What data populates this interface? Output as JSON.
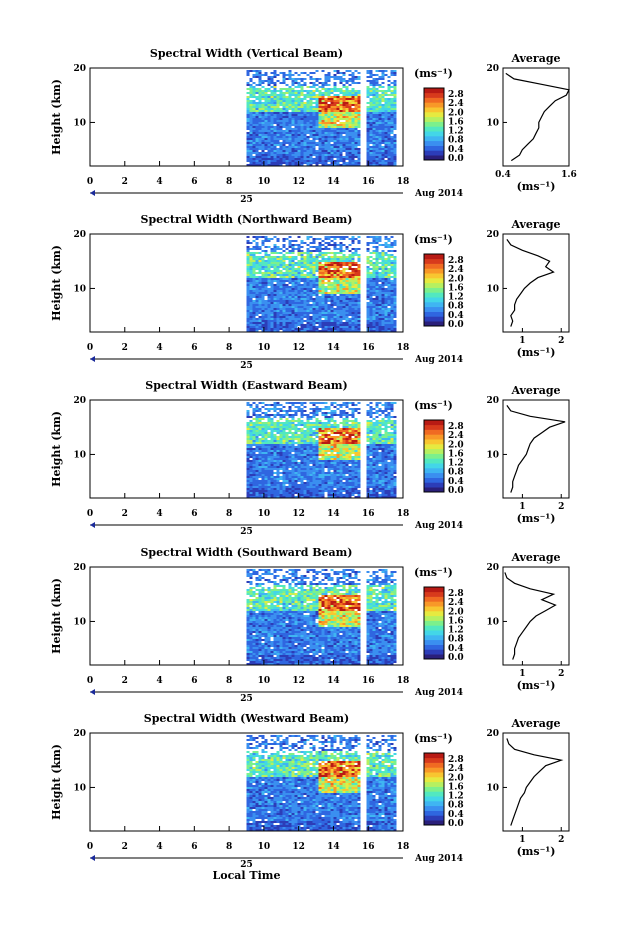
{
  "figure": {
    "xlabel": "Local Time",
    "date_label": "Aug 2014",
    "day_label": "25",
    "colorbar_unit": "(ms⁻¹)",
    "avg_title": "Average",
    "avg_unit": "(ms⁻¹)",
    "colors": {
      "colormap": [
        "#2a1f7a",
        "#2c3db8",
        "#2f66e0",
        "#3a8ff0",
        "#3fb5f2",
        "#43d6e8",
        "#52e8c0",
        "#7cf08c",
        "#b6f060",
        "#e6ea40",
        "#f8c630",
        "#f89828",
        "#f06a22",
        "#d83a1c",
        "#b81a14"
      ]
    }
  },
  "chart_data": [
    {
      "type": "heatmap",
      "title": "Spectral Width (Vertical Beam)",
      "ylabel": "Height (km)",
      "xlim": [
        0,
        18
      ],
      "ylim": [
        2,
        20
      ],
      "xticks": [
        "0",
        "2",
        "4",
        "6",
        "8",
        "10",
        "12",
        "14",
        "16",
        "18"
      ],
      "yticks": [
        "10",
        "20"
      ],
      "colorbar_ticks": [
        "2.8",
        "2.4",
        "2.0",
        "1.6",
        "1.2",
        "0.8",
        "0.4",
        "0.0"
      ],
      "data_start_hour": 9.0,
      "data_end_hour": 17.6,
      "gaps_hours": [
        [
          15.5,
          15.9
        ]
      ],
      "average": {
        "xlim": [
          0.4,
          1.6
        ],
        "xticks": [
          "0.4",
          "1.6"
        ],
        "yticks": [
          "10",
          "20"
        ],
        "height_km": [
          3,
          4,
          5,
          6,
          7,
          8,
          9,
          10,
          11,
          12,
          13,
          14,
          15,
          16,
          17,
          18,
          19
        ],
        "value": [
          0.55,
          0.7,
          0.75,
          0.85,
          0.95,
          1.0,
          1.05,
          1.05,
          1.1,
          1.15,
          1.25,
          1.35,
          1.55,
          1.6,
          1.1,
          0.6,
          0.45
        ]
      }
    },
    {
      "type": "heatmap",
      "title": "Spectral Width (Northward Beam)",
      "ylabel": "Height (km)",
      "xlim": [
        0,
        18
      ],
      "ylim": [
        2,
        20
      ],
      "xticks": [
        "0",
        "2",
        "4",
        "6",
        "8",
        "10",
        "12",
        "14",
        "16",
        "18"
      ],
      "yticks": [
        "10",
        "20"
      ],
      "colorbar_ticks": [
        "2.8",
        "2.4",
        "2.0",
        "1.6",
        "1.2",
        "0.8",
        "0.4",
        "0.0"
      ],
      "data_start_hour": 9.0,
      "data_end_hour": 17.6,
      "gaps_hours": [
        [
          15.5,
          15.9
        ]
      ],
      "average": {
        "xlim": [
          0.5,
          2.2
        ],
        "xticks": [
          "1",
          "2"
        ],
        "yticks": [
          "10",
          "20"
        ],
        "height_km": [
          3,
          4,
          5,
          6,
          7,
          8,
          9,
          10,
          11,
          12,
          13,
          14,
          15,
          16,
          17,
          18,
          19
        ],
        "value": [
          0.7,
          0.75,
          0.7,
          0.8,
          0.8,
          0.85,
          0.95,
          1.05,
          1.2,
          1.4,
          1.8,
          1.6,
          1.7,
          1.4,
          1.0,
          0.7,
          0.6
        ]
      }
    },
    {
      "type": "heatmap",
      "title": "Spectral Width (Eastward Beam)",
      "ylabel": "Height (km)",
      "xlim": [
        0,
        18
      ],
      "ylim": [
        2,
        20
      ],
      "xticks": [
        "0",
        "2",
        "4",
        "6",
        "8",
        "10",
        "12",
        "14",
        "16",
        "18"
      ],
      "yticks": [
        "10",
        "20"
      ],
      "colorbar_ticks": [
        "2.8",
        "2.4",
        "2.0",
        "1.6",
        "1.2",
        "0.8",
        "0.4",
        "0.0"
      ],
      "data_start_hour": 9.0,
      "data_end_hour": 17.6,
      "gaps_hours": [
        [
          15.5,
          15.9
        ]
      ],
      "average": {
        "xlim": [
          0.5,
          2.2
        ],
        "xticks": [
          "1",
          "2"
        ],
        "yticks": [
          "10",
          "20"
        ],
        "height_km": [
          3,
          4,
          5,
          6,
          7,
          8,
          9,
          10,
          11,
          12,
          13,
          14,
          15,
          16,
          17,
          18,
          19
        ],
        "value": [
          0.7,
          0.75,
          0.75,
          0.8,
          0.85,
          0.9,
          1.0,
          1.1,
          1.15,
          1.2,
          1.3,
          1.5,
          1.7,
          2.1,
          1.2,
          0.7,
          0.6
        ]
      }
    },
    {
      "type": "heatmap",
      "title": "Spectral Width (Southward Beam)",
      "ylabel": "Height (km)",
      "xlim": [
        0,
        18
      ],
      "ylim": [
        2,
        20
      ],
      "xticks": [
        "0",
        "2",
        "4",
        "6",
        "8",
        "10",
        "12",
        "14",
        "16",
        "18"
      ],
      "yticks": [
        "10",
        "20"
      ],
      "colorbar_ticks": [
        "2.8",
        "2.4",
        "2.0",
        "1.6",
        "1.2",
        "0.8",
        "0.4",
        "0.0"
      ],
      "data_start_hour": 9.0,
      "data_end_hour": 17.6,
      "gaps_hours": [
        [
          15.5,
          15.9
        ]
      ],
      "average": {
        "xlim": [
          0.5,
          2.2
        ],
        "xticks": [
          "1",
          "2"
        ],
        "yticks": [
          "10",
          "20"
        ],
        "height_km": [
          3,
          4,
          5,
          6,
          7,
          8,
          9,
          10,
          11,
          12,
          13,
          14,
          15,
          16,
          17,
          18,
          19
        ],
        "value": [
          0.75,
          0.8,
          0.8,
          0.85,
          0.9,
          1.0,
          1.1,
          1.2,
          1.35,
          1.6,
          1.85,
          1.5,
          1.8,
          1.2,
          0.8,
          0.6,
          0.55
        ]
      }
    },
    {
      "type": "heatmap",
      "title": "Spectral Width (Westward Beam)",
      "ylabel": "Height (km)",
      "xlim": [
        0,
        18
      ],
      "ylim": [
        2,
        20
      ],
      "xticks": [
        "0",
        "2",
        "4",
        "6",
        "8",
        "10",
        "12",
        "14",
        "16",
        "18"
      ],
      "yticks": [
        "10",
        "20"
      ],
      "colorbar_ticks": [
        "2.8",
        "2.4",
        "2.0",
        "1.6",
        "1.2",
        "0.8",
        "0.4",
        "0.0"
      ],
      "data_start_hour": 9.0,
      "data_end_hour": 17.6,
      "gaps_hours": [
        [
          15.5,
          15.9
        ]
      ],
      "average": {
        "xlim": [
          0.5,
          2.2
        ],
        "xticks": [
          "1",
          "2"
        ],
        "yticks": [
          "10",
          "20"
        ],
        "height_km": [
          3,
          4,
          5,
          6,
          7,
          8,
          9,
          10,
          11,
          12,
          13,
          14,
          15,
          16,
          17,
          18,
          19
        ],
        "value": [
          0.7,
          0.75,
          0.8,
          0.85,
          0.9,
          0.95,
          1.05,
          1.1,
          1.2,
          1.3,
          1.45,
          1.6,
          2.0,
          1.3,
          0.8,
          0.65,
          0.6
        ]
      }
    }
  ]
}
